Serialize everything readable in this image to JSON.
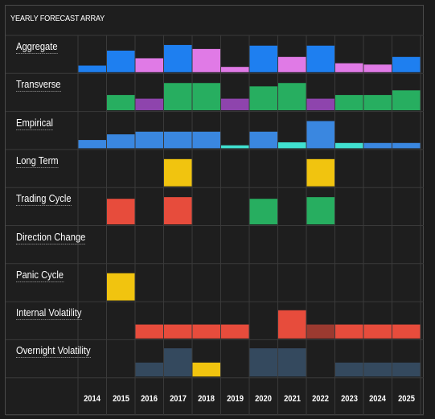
{
  "title": "YEARLY FORECAST ARRAY",
  "years": [
    "2014",
    "2015",
    "2016",
    "2017",
    "2018",
    "2019",
    "2020",
    "2021",
    "2022",
    "2023",
    "2024",
    "2025"
  ],
  "rows": [
    {
      "label": "Aggregate",
      "cells": [
        {
          "v": 0.2,
          "c": "#1e7ff0"
        },
        {
          "v": 0.65,
          "c": "#1e7ff0"
        },
        {
          "v": 0.42,
          "c": "#e07ae6"
        },
        {
          "v": 0.82,
          "c": "#1e7ff0"
        },
        {
          "v": 0.7,
          "c": "#e07ae6"
        },
        {
          "v": 0.16,
          "c": "#e07ae6"
        },
        {
          "v": 0.8,
          "c": "#1e7ff0"
        },
        {
          "v": 0.46,
          "c": "#e07ae6"
        },
        {
          "v": 0.8,
          "c": "#1e7ff0"
        },
        {
          "v": 0.27,
          "c": "#e07ae6"
        },
        {
          "v": 0.23,
          "c": "#e07ae6"
        },
        {
          "v": 0.46,
          "c": "#1e7ff0"
        }
      ]
    },
    {
      "label": "Transverse",
      "cells": [
        {
          "v": 0,
          "c": ""
        },
        {
          "v": 0.46,
          "c": "#27ae60"
        },
        {
          "v": 0.35,
          "c": "#8e44ad"
        },
        {
          "v": 0.82,
          "c": "#27ae60"
        },
        {
          "v": 0.82,
          "c": "#27ae60"
        },
        {
          "v": 0.35,
          "c": "#8e44ad"
        },
        {
          "v": 0.72,
          "c": "#27ae60"
        },
        {
          "v": 0.82,
          "c": "#27ae60"
        },
        {
          "v": 0.35,
          "c": "#8e44ad"
        },
        {
          "v": 0.46,
          "c": "#27ae60"
        },
        {
          "v": 0.46,
          "c": "#27ae60"
        },
        {
          "v": 0.6,
          "c": "#27ae60"
        }
      ]
    },
    {
      "label": "Empirical",
      "cells": [
        {
          "v": 0.25,
          "c": "#3a87e0"
        },
        {
          "v": 0.42,
          "c": "#3a87e0"
        },
        {
          "v": 0.5,
          "c": "#3a87e0"
        },
        {
          "v": 0.5,
          "c": "#3a87e0"
        },
        {
          "v": 0.5,
          "c": "#3a87e0"
        },
        {
          "v": 0.09,
          "c": "#40e0d0"
        },
        {
          "v": 0.5,
          "c": "#3a87e0"
        },
        {
          "v": 0.18,
          "c": "#40e0d0"
        },
        {
          "v": 0.82,
          "c": "#3a87e0"
        },
        {
          "v": 0.16,
          "c": "#40e0d0"
        },
        {
          "v": 0.16,
          "c": "#3a87e0"
        },
        {
          "v": 0.16,
          "c": "#3a87e0"
        }
      ]
    },
    {
      "label": "Long Term",
      "cells": [
        {
          "v": 0,
          "c": ""
        },
        {
          "v": 0,
          "c": ""
        },
        {
          "v": 0,
          "c": ""
        },
        {
          "v": 0.82,
          "c": "#f1c40f"
        },
        {
          "v": 0,
          "c": ""
        },
        {
          "v": 0,
          "c": ""
        },
        {
          "v": 0,
          "c": ""
        },
        {
          "v": 0,
          "c": ""
        },
        {
          "v": 0.82,
          "c": "#f1c40f"
        },
        {
          "v": 0,
          "c": ""
        },
        {
          "v": 0,
          "c": ""
        },
        {
          "v": 0,
          "c": ""
        }
      ]
    },
    {
      "label": "Trading Cycle",
      "cells": [
        {
          "v": 0,
          "c": ""
        },
        {
          "v": 0.77,
          "c": "#e74c3c"
        },
        {
          "v": 0,
          "c": ""
        },
        {
          "v": 0.82,
          "c": "#e74c3c"
        },
        {
          "v": 0,
          "c": ""
        },
        {
          "v": 0,
          "c": ""
        },
        {
          "v": 0.77,
          "c": "#27ae60"
        },
        {
          "v": 0,
          "c": ""
        },
        {
          "v": 0.82,
          "c": "#27ae60"
        },
        {
          "v": 0,
          "c": ""
        },
        {
          "v": 0,
          "c": ""
        },
        {
          "v": 0,
          "c": ""
        }
      ]
    },
    {
      "label": "Direction Change",
      "cells": [
        {
          "v": 0,
          "c": ""
        },
        {
          "v": 0,
          "c": ""
        },
        {
          "v": 0,
          "c": ""
        },
        {
          "v": 0,
          "c": ""
        },
        {
          "v": 0,
          "c": ""
        },
        {
          "v": 0,
          "c": ""
        },
        {
          "v": 0,
          "c": ""
        },
        {
          "v": 0,
          "c": ""
        },
        {
          "v": 0,
          "c": ""
        },
        {
          "v": 0,
          "c": ""
        },
        {
          "v": 0,
          "c": ""
        },
        {
          "v": 0,
          "c": ""
        }
      ]
    },
    {
      "label": "Panic Cycle",
      "cells": [
        {
          "v": 0,
          "c": ""
        },
        {
          "v": 0.82,
          "c": "#f1c40f"
        },
        {
          "v": 0,
          "c": ""
        },
        {
          "v": 0,
          "c": ""
        },
        {
          "v": 0,
          "c": ""
        },
        {
          "v": 0,
          "c": ""
        },
        {
          "v": 0,
          "c": ""
        },
        {
          "v": 0,
          "c": ""
        },
        {
          "v": 0,
          "c": ""
        },
        {
          "v": 0,
          "c": ""
        },
        {
          "v": 0,
          "c": ""
        },
        {
          "v": 0,
          "c": ""
        }
      ]
    },
    {
      "label": "Internal Volatility",
      "cells": [
        {
          "v": 0,
          "c": ""
        },
        {
          "v": 0,
          "c": ""
        },
        {
          "v": 0.42,
          "c": "#e74c3c"
        },
        {
          "v": 0.42,
          "c": "#e74c3c"
        },
        {
          "v": 0.42,
          "c": "#e74c3c"
        },
        {
          "v": 0.42,
          "c": "#e74c3c"
        },
        {
          "v": 0,
          "c": ""
        },
        {
          "v": 0.85,
          "c": "#e74c3c"
        },
        {
          "v": 0.42,
          "c": "#9b3a30"
        },
        {
          "v": 0.42,
          "c": "#e74c3c"
        },
        {
          "v": 0.42,
          "c": "#e74c3c"
        },
        {
          "v": 0.42,
          "c": "#e74c3c"
        }
      ]
    },
    {
      "label": "Overnight Volatility",
      "cells": [
        {
          "v": 0,
          "c": ""
        },
        {
          "v": 0,
          "c": ""
        },
        {
          "v": 0.42,
          "c": "#34495e"
        },
        {
          "v": 0.85,
          "c": "#34495e"
        },
        {
          "v": 0.42,
          "c": "#f1c40f"
        },
        {
          "v": 0,
          "c": ""
        },
        {
          "v": 0.85,
          "c": "#34495e"
        },
        {
          "v": 0.85,
          "c": "#34495e"
        },
        {
          "v": 0,
          "c": ""
        },
        {
          "v": 0.42,
          "c": "#34495e"
        },
        {
          "v": 0.42,
          "c": "#34495e"
        },
        {
          "v": 0.42,
          "c": "#34495e"
        }
      ]
    }
  ]
}
